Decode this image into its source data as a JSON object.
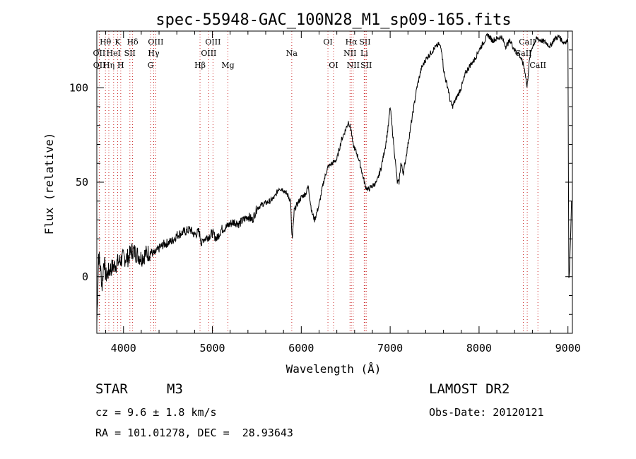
{
  "chart_data": {
    "type": "line",
    "title": "spec-55948-GAC_100N28_M1_sp09-165.fits",
    "xlabel": "Wavelength (Å)",
    "ylabel": "Flux (relative)",
    "xlim": [
      3700,
      9050
    ],
    "ylim": [
      -30,
      130
    ],
    "x_ticks": [
      4000,
      5000,
      6000,
      7000,
      8000,
      9000
    ],
    "y_ticks": [
      0,
      50,
      100
    ],
    "series": [
      {
        "x": [
          3700,
          3720,
          3740,
          3760,
          3780,
          3800,
          3850,
          3900,
          3950,
          4000,
          4050,
          4100,
          4150,
          4200,
          4250,
          4300,
          4350,
          4400,
          4450,
          4500,
          4550,
          4600,
          4650,
          4700,
          4750,
          4800,
          4850,
          4880,
          4900,
          4950,
          5000,
          5050,
          5100,
          5150,
          5200,
          5250,
          5300,
          5350,
          5400,
          5450,
          5500,
          5550,
          5600,
          5650,
          5700,
          5750,
          5800,
          5850,
          5880,
          5890,
          5900,
          5920,
          5950,
          6000,
          6050,
          6080,
          6100,
          6120,
          6150,
          6200,
          6250,
          6280,
          6300,
          6350,
          6400,
          6450,
          6500,
          6530,
          6560,
          6580,
          6600,
          6650,
          6700,
          6720,
          6750,
          6800,
          6850,
          6900,
          6950,
          6980,
          7000,
          7050,
          7080,
          7100,
          7120,
          7150,
          7200,
          7250,
          7300,
          7350,
          7400,
          7450,
          7500,
          7550,
          7580,
          7600,
          7620,
          7650,
          7680,
          7700,
          7750,
          7800,
          7850,
          7900,
          7950,
          8000,
          8050,
          8100,
          8150,
          8200,
          8250,
          8300,
          8350,
          8400,
          8450,
          8500,
          8520,
          8540,
          8560,
          8580,
          8600,
          8650,
          8700,
          8750,
          8800,
          8850,
          8900,
          8950,
          9000,
          9010,
          9020,
          9040
        ],
        "y": [
          -25,
          12,
          5,
          -5,
          10,
          0,
          4,
          6,
          8,
          10,
          10,
          14,
          12,
          10,
          12,
          13,
          12,
          15,
          17,
          18,
          19,
          22,
          23,
          24,
          25,
          22,
          24,
          17,
          20,
          21,
          23,
          20,
          25,
          26,
          28,
          29,
          28,
          30,
          32,
          30,
          36,
          38,
          39,
          40,
          42,
          47,
          46,
          43,
          40,
          25,
          20,
          35,
          38,
          42,
          44,
          48,
          40,
          34,
          30,
          38,
          50,
          55,
          58,
          60,
          62,
          72,
          78,
          82,
          78,
          70,
          68,
          62,
          52,
          48,
          46,
          48,
          50,
          58,
          70,
          80,
          90,
          65,
          50,
          50,
          60,
          55,
          70,
          85,
          100,
          110,
          115,
          118,
          121,
          123,
          120,
          110,
          105,
          100,
          92,
          90,
          95,
          100,
          108,
          112,
          115,
          120,
          124,
          128,
          125,
          126,
          127,
          122,
          125,
          120,
          118,
          112,
          108,
          100,
          112,
          118,
          122,
          126,
          125,
          124,
          122,
          126,
          127,
          124,
          125,
          0,
          5,
          40
        ]
      }
    ],
    "lines": [
      {
        "name": "Hθ",
        "wl": 3797,
        "row": 0
      },
      {
        "name": "OII",
        "wl": 3727,
        "row": 1
      },
      {
        "name": "OII",
        "wl": 3729,
        "row": 2
      },
      {
        "name": "K",
        "wl": 3934,
        "row": 0
      },
      {
        "name": "HeI",
        "wl": 3889,
        "row": 1
      },
      {
        "name": "Hη",
        "wl": 3835,
        "row": 2
      },
      {
        "name": "Hδ",
        "wl": 4102,
        "row": 0
      },
      {
        "name": "SII",
        "wl": 4072,
        "row": 1
      },
      {
        "name": "H",
        "wl": 3969,
        "row": 2
      },
      {
        "name": "OIII",
        "wl": 4363,
        "row": 0
      },
      {
        "name": "Hγ",
        "wl": 4340,
        "row": 1
      },
      {
        "name": "G",
        "wl": 4305,
        "row": 2
      },
      {
        "name": "OIII",
        "wl": 5007,
        "row": 0
      },
      {
        "name": "OIII",
        "wl": 4959,
        "row": 1
      },
      {
        "name": "Hβ",
        "wl": 4861,
        "row": 2
      },
      {
        "name": "Mg",
        "wl": 5175,
        "row": 2
      },
      {
        "name": "Na",
        "wl": 5893,
        "row": 1
      },
      {
        "name": "OI",
        "wl": 6300,
        "row": 0
      },
      {
        "name": "OI",
        "wl": 6363,
        "row": 2
      },
      {
        "name": "Hα",
        "wl": 6563,
        "row": 0
      },
      {
        "name": "NII",
        "wl": 6548,
        "row": 1
      },
      {
        "name": "NII",
        "wl": 6584,
        "row": 2
      },
      {
        "name": "SII",
        "wl": 6717,
        "row": 0
      },
      {
        "name": "Li",
        "wl": 6708,
        "row": 1
      },
      {
        "name": "SII",
        "wl": 6731,
        "row": 2
      },
      {
        "name": "CaII",
        "wl": 8542,
        "row": 0
      },
      {
        "name": "CaII",
        "wl": 8498,
        "row": 1
      },
      {
        "name": "CaII",
        "wl": 8662,
        "row": 2
      }
    ]
  },
  "info": {
    "object_class": "STAR",
    "subclass": "M3",
    "survey": "LAMOST DR2",
    "redshift": "cz = 9.6 ± 1.8 km/s",
    "obs_date": "Obs-Date: 20120121",
    "coords": "RA = 101.01278, DEC =  28.93643"
  }
}
